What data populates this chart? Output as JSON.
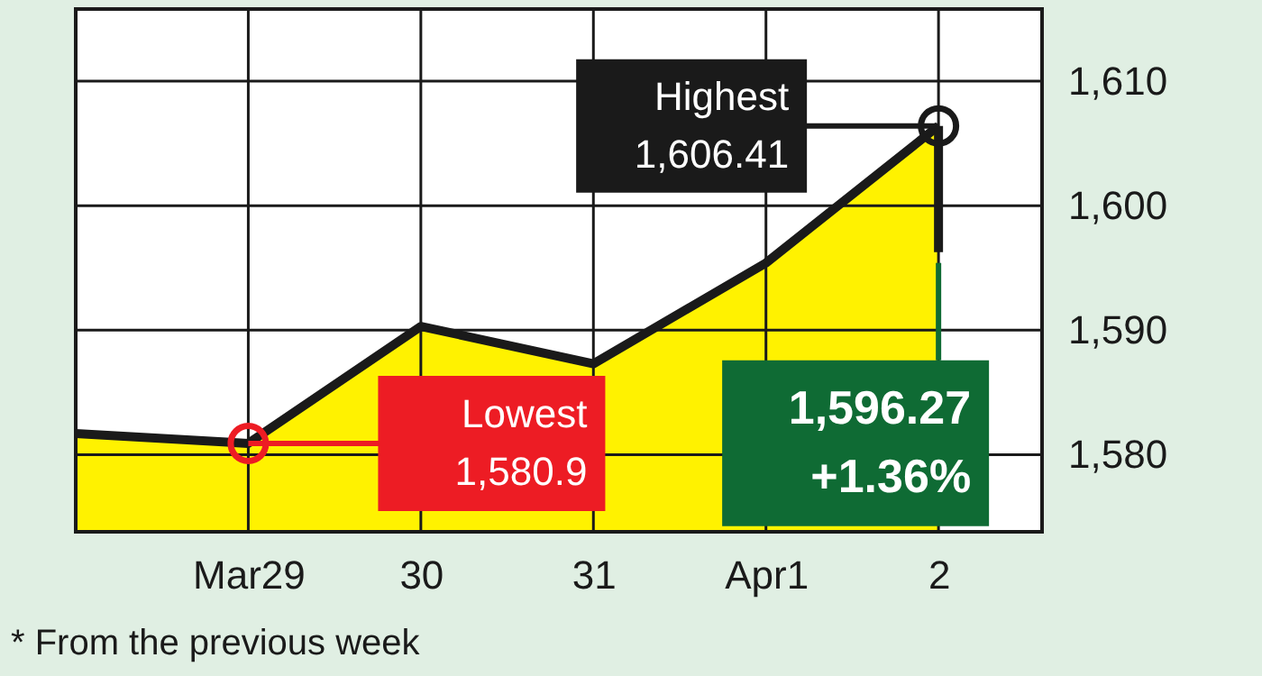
{
  "chart_data": {
    "type": "area",
    "categories": [
      null,
      "Mar29",
      "30",
      "31",
      "Apr1",
      "2"
    ],
    "series": [
      {
        "color": "#fff200",
        "values": [
          1581.7,
          1580.9,
          1590.3,
          1587.3,
          1595.4,
          1606.41
        ]
      },
      {
        "type": "line",
        "color": "#1a1a1a",
        "x": [
          "2",
          "2"
        ],
        "values": [
          1606.41,
          1596.27
        ]
      }
    ],
    "ylim": [
      1573.8,
      1615.8
    ],
    "yticks": [
      {
        "value": 1580,
        "label": "1,580"
      },
      {
        "value": 1590,
        "label": "1,590"
      },
      {
        "value": 1600,
        "label": "1,600"
      },
      {
        "value": 1610,
        "label": "1,610"
      }
    ],
    "grid": true,
    "annotations": [
      {
        "text": "Highest\n1,606.41",
        "x": "2",
        "y": 1606.41
      },
      {
        "text": "Lowest\n1,580.9",
        "x": "Mar29",
        "y": 1580.9
      },
      {
        "text": "1,596.27\n+1.36%",
        "x": "2",
        "y": 1596.27
      },
      "* From the previous week"
    ]
  }
}
